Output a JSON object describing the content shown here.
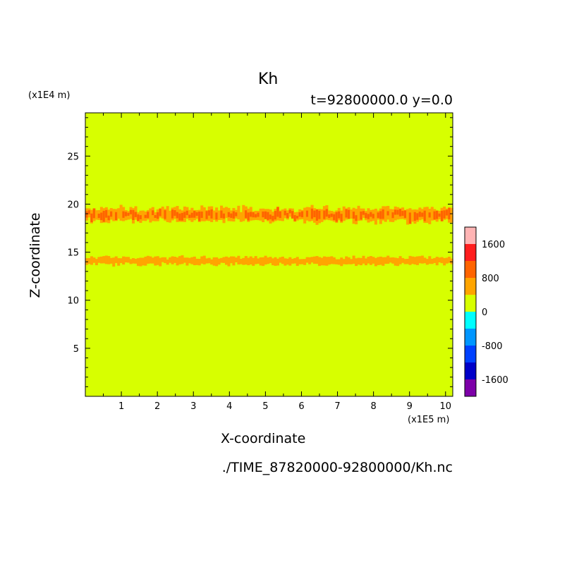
{
  "chart_data": {
    "type": "heatmap",
    "title": "Kh",
    "subtitle": "t=92800000.0 y=0.0",
    "xlabel": "X-coordinate",
    "ylabel": "Z-coordinate",
    "x_unit": "(x1E5 m)",
    "y_unit": "(x1E4 m)",
    "xlim": [
      0,
      10.2
    ],
    "ylim": [
      0,
      29.5
    ],
    "x_ticks": [
      "1",
      "2",
      "3",
      "4",
      "5",
      "6",
      "7",
      "8",
      "9",
      "10"
    ],
    "y_ticks": [
      "5",
      "10",
      "15",
      "20",
      "25"
    ],
    "background_value_range": [
      0,
      400
    ],
    "bands": [
      {
        "name": "upper-band",
        "z_center": 18.9,
        "z_halfwidth": 0.8,
        "level_range": [
          400,
          1600
        ]
      },
      {
        "name": "lower-band",
        "z_center": 14.1,
        "z_halfwidth": 0.45,
        "level_range": [
          400,
          800
        ]
      }
    ],
    "colorbar": {
      "tick_labels": [
        "1600",
        "800",
        "0",
        "-800",
        "-1600"
      ],
      "tick_values": [
        1600,
        800,
        0,
        -800,
        -1600
      ],
      "levels": [
        -2000,
        -1600,
        -1200,
        -800,
        -400,
        0,
        400,
        800,
        1200,
        1600,
        2000
      ],
      "colors": [
        "#7d00a8",
        "#0000c8",
        "#0041ff",
        "#0096ff",
        "#00ffff",
        "#d7ff00",
        "#ffa500",
        "#ff6400",
        "#ff1e1e",
        "#ffb4b4"
      ]
    },
    "grid": false
  },
  "file_path": "./TIME_87820000-92800000/Kh.nc"
}
